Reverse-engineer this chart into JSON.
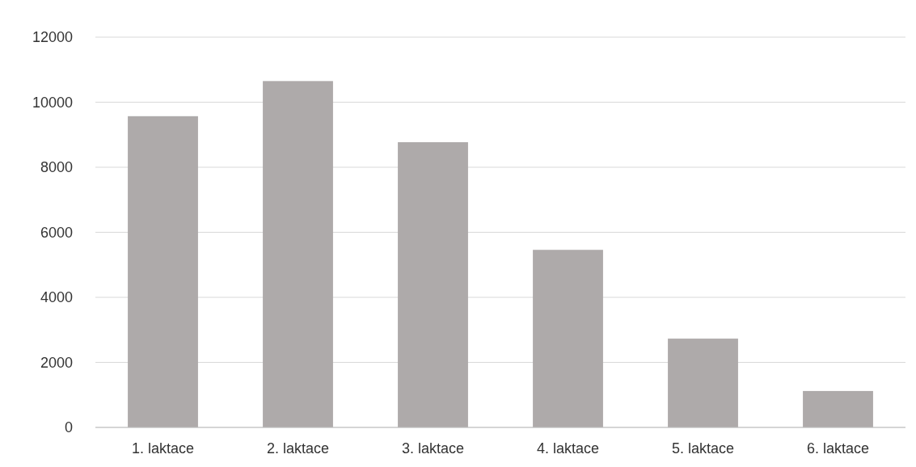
{
  "chart_data": {
    "type": "bar",
    "categories": [
      "1. laktace",
      "2. laktace",
      "3. laktace",
      "4. laktace",
      "5. laktace",
      "6. laktace"
    ],
    "values": [
      9570,
      10650,
      8770,
      5460,
      2730,
      1120
    ],
    "color": "#aeaaaa",
    "ylim": [
      0,
      12000
    ],
    "yticks": [
      0,
      2000,
      4000,
      6000,
      8000,
      10000,
      12000
    ],
    "grid": "y"
  }
}
